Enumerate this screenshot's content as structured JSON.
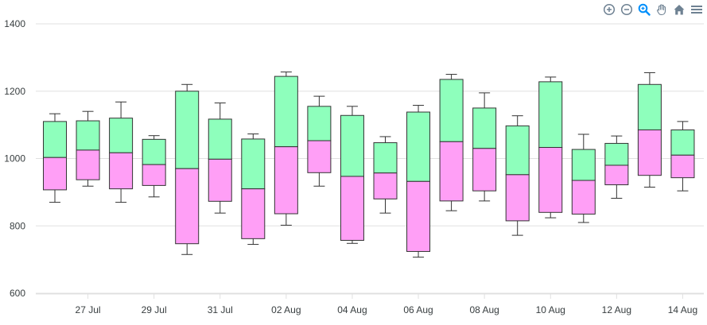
{
  "toolbar": {
    "icons": [
      "zoom-in-icon",
      "zoom-out-icon",
      "zoom-selection-icon",
      "pan-hand-icon",
      "home-reset-icon",
      "menu-icon"
    ],
    "active_icon": "zoom-selection-icon",
    "accent_color": "#008ffb",
    "icon_color": "#6e8192"
  },
  "chart_data": {
    "type": "boxplot",
    "title": "",
    "xlabel": "",
    "ylabel": "",
    "ylim": [
      600,
      1400
    ],
    "y_ticks": [
      "600",
      "800",
      "1000",
      "1200",
      "1400"
    ],
    "x_tick_labels": [
      "27 Jul",
      "29 Jul",
      "31 Jul",
      "02 Aug",
      "04 Aug",
      "06 Aug",
      "08 Aug",
      "10 Aug",
      "12 Aug",
      "14 Aug"
    ],
    "grid": true,
    "colors": {
      "upper": "#8effbc",
      "lower": "#ff9ff6",
      "stroke": "#333333"
    },
    "series": [
      {
        "x": "2024-07-26",
        "min": 870,
        "q1": 907,
        "median": 1003,
        "q3": 1110,
        "max": 1133
      },
      {
        "x": "2024-07-27",
        "min": 918,
        "q1": 937,
        "median": 1025,
        "q3": 1112,
        "max": 1140
      },
      {
        "x": "2024-07-28",
        "min": 870,
        "q1": 910,
        "median": 1017,
        "q3": 1120,
        "max": 1168
      },
      {
        "x": "2024-07-29",
        "min": 886,
        "q1": 920,
        "median": 982,
        "q3": 1057,
        "max": 1068
      },
      {
        "x": "2024-07-30",
        "min": 715,
        "q1": 747,
        "median": 970,
        "q3": 1200,
        "max": 1220
      },
      {
        "x": "2024-07-31",
        "min": 838,
        "q1": 873,
        "median": 998,
        "q3": 1117,
        "max": 1165
      },
      {
        "x": "2024-08-01",
        "min": 745,
        "q1": 762,
        "median": 910,
        "q3": 1058,
        "max": 1073
      },
      {
        "x": "2024-08-02",
        "min": 802,
        "q1": 836,
        "median": 1035,
        "q3": 1244,
        "max": 1257
      },
      {
        "x": "2024-08-03",
        "min": 918,
        "q1": 958,
        "median": 1053,
        "q3": 1155,
        "max": 1185
      },
      {
        "x": "2024-08-04",
        "min": 748,
        "q1": 757,
        "median": 947,
        "q3": 1128,
        "max": 1155
      },
      {
        "x": "2024-08-05",
        "min": 838,
        "q1": 880,
        "median": 957,
        "q3": 1047,
        "max": 1065
      },
      {
        "x": "2024-08-06",
        "min": 707,
        "q1": 724,
        "median": 932,
        "q3": 1138,
        "max": 1158
      },
      {
        "x": "2024-08-07",
        "min": 845,
        "q1": 874,
        "median": 1050,
        "q3": 1235,
        "max": 1250
      },
      {
        "x": "2024-08-08",
        "min": 874,
        "q1": 904,
        "median": 1030,
        "q3": 1150,
        "max": 1195
      },
      {
        "x": "2024-08-09",
        "min": 772,
        "q1": 815,
        "median": 952,
        "q3": 1097,
        "max": 1127
      },
      {
        "x": "2024-08-10",
        "min": 824,
        "q1": 840,
        "median": 1033,
        "q3": 1228,
        "max": 1242
      },
      {
        "x": "2024-08-11",
        "min": 810,
        "q1": 835,
        "median": 935,
        "q3": 1027,
        "max": 1072
      },
      {
        "x": "2024-08-12",
        "min": 882,
        "q1": 922,
        "median": 980,
        "q3": 1045,
        "max": 1067
      },
      {
        "x": "2024-08-13",
        "min": 915,
        "q1": 950,
        "median": 1085,
        "q3": 1220,
        "max": 1255
      },
      {
        "x": "2024-08-14",
        "min": 904,
        "q1": 943,
        "median": 1010,
        "q3": 1085,
        "max": 1110
      }
    ]
  }
}
